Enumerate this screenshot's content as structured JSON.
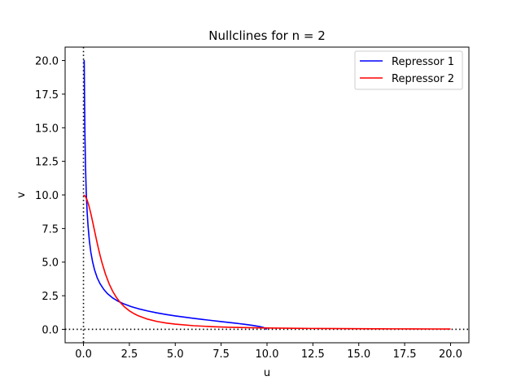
{
  "chart_data": {
    "type": "line",
    "title": "Nullclines for n = 2",
    "xlabel": "u",
    "ylabel": "v",
    "xlim": [
      -1.0,
      21.0
    ],
    "ylim": [
      -1.0,
      21.0
    ],
    "xticks": [
      0.0,
      2.5,
      5.0,
      7.5,
      10.0,
      12.5,
      15.0,
      17.5,
      20.0
    ],
    "xtick_labels": [
      "0.0",
      "2.5",
      "5.0",
      "7.5",
      "10.0",
      "12.5",
      "15.0",
      "17.5",
      "20.0"
    ],
    "yticks": [
      0.0,
      2.5,
      5.0,
      7.5,
      10.0,
      12.5,
      15.0,
      17.5,
      20.0
    ],
    "ytick_labels": [
      "0.0",
      "2.5",
      "5.0",
      "7.5",
      "10.0",
      "12.5",
      "15.0",
      "17.5",
      "20.0"
    ],
    "grid": false,
    "legend_position": "top-right",
    "reference_lines": [
      {
        "axis": "x",
        "value": 0,
        "style": "dotted",
        "color": "#000000"
      },
      {
        "axis": "y",
        "value": 0,
        "style": "dotted",
        "color": "#000000"
      }
    ],
    "series": [
      {
        "name": "Repressor 1",
        "color": "#0000ff",
        "x": [
          10.0,
          9.8,
          9.6,
          9.4,
          9.2,
          9.0,
          8.75,
          8.5,
          8.25,
          8.0,
          7.5,
          7.0,
          6.5,
          6.0,
          5.5,
          5.0,
          4.5,
          4.0,
          3.5,
          3.0,
          2.6,
          2.2,
          1.9,
          1.6,
          1.3,
          1.1,
          0.9,
          0.75,
          0.6,
          0.5,
          0.4,
          0.32,
          0.25,
          0.2,
          0.15,
          0.11,
          0.08,
          0.06,
          0.04,
          0.03,
          0.02,
          0.01,
          0.005,
          0.0
        ],
        "y": [
          0.0,
          0.142,
          0.204,
          0.252,
          0.294,
          0.333,
          0.378,
          0.42,
          0.461,
          0.5,
          0.577,
          0.655,
          0.734,
          0.816,
          0.905,
          1.0,
          1.106,
          1.225,
          1.363,
          1.528,
          1.69,
          1.89,
          2.082,
          2.327,
          2.666,
          2.983,
          3.402,
          3.83,
          4.441,
          5.0,
          5.745,
          6.602,
          7.681,
          8.718,
          10.224,
          12.135,
          14.431,
          16.8,
          20.0,
          20.0,
          20.0,
          20.0,
          20.0,
          20.0
        ]
      },
      {
        "name": "Repressor 2",
        "color": "#ff0000",
        "x": [
          0.0,
          0.1,
          0.2,
          0.3,
          0.4,
          0.5,
          0.6,
          0.7,
          0.8,
          0.9,
          1.0,
          1.2,
          1.4,
          1.6,
          1.8,
          2.0,
          2.25,
          2.5,
          2.75,
          3.0,
          3.5,
          4.0,
          4.5,
          5.0,
          6.0,
          7.0,
          8.0,
          9.0,
          10.0,
          11.0,
          12.0,
          13.0,
          14.0,
          15.0,
          16.0,
          17.0,
          18.0,
          19.0,
          20.0
        ],
        "y": [
          10.0,
          9.901,
          9.615,
          9.174,
          8.621,
          8.0,
          7.353,
          6.711,
          6.098,
          5.525,
          5.0,
          4.098,
          3.378,
          2.809,
          2.358,
          2.0,
          1.649,
          1.379,
          1.168,
          1.0,
          0.755,
          0.588,
          0.471,
          0.385,
          0.27,
          0.2,
          0.154,
          0.122,
          0.099,
          0.082,
          0.069,
          0.059,
          0.051,
          0.044,
          0.039,
          0.035,
          0.031,
          0.028,
          0.025
        ]
      }
    ]
  }
}
